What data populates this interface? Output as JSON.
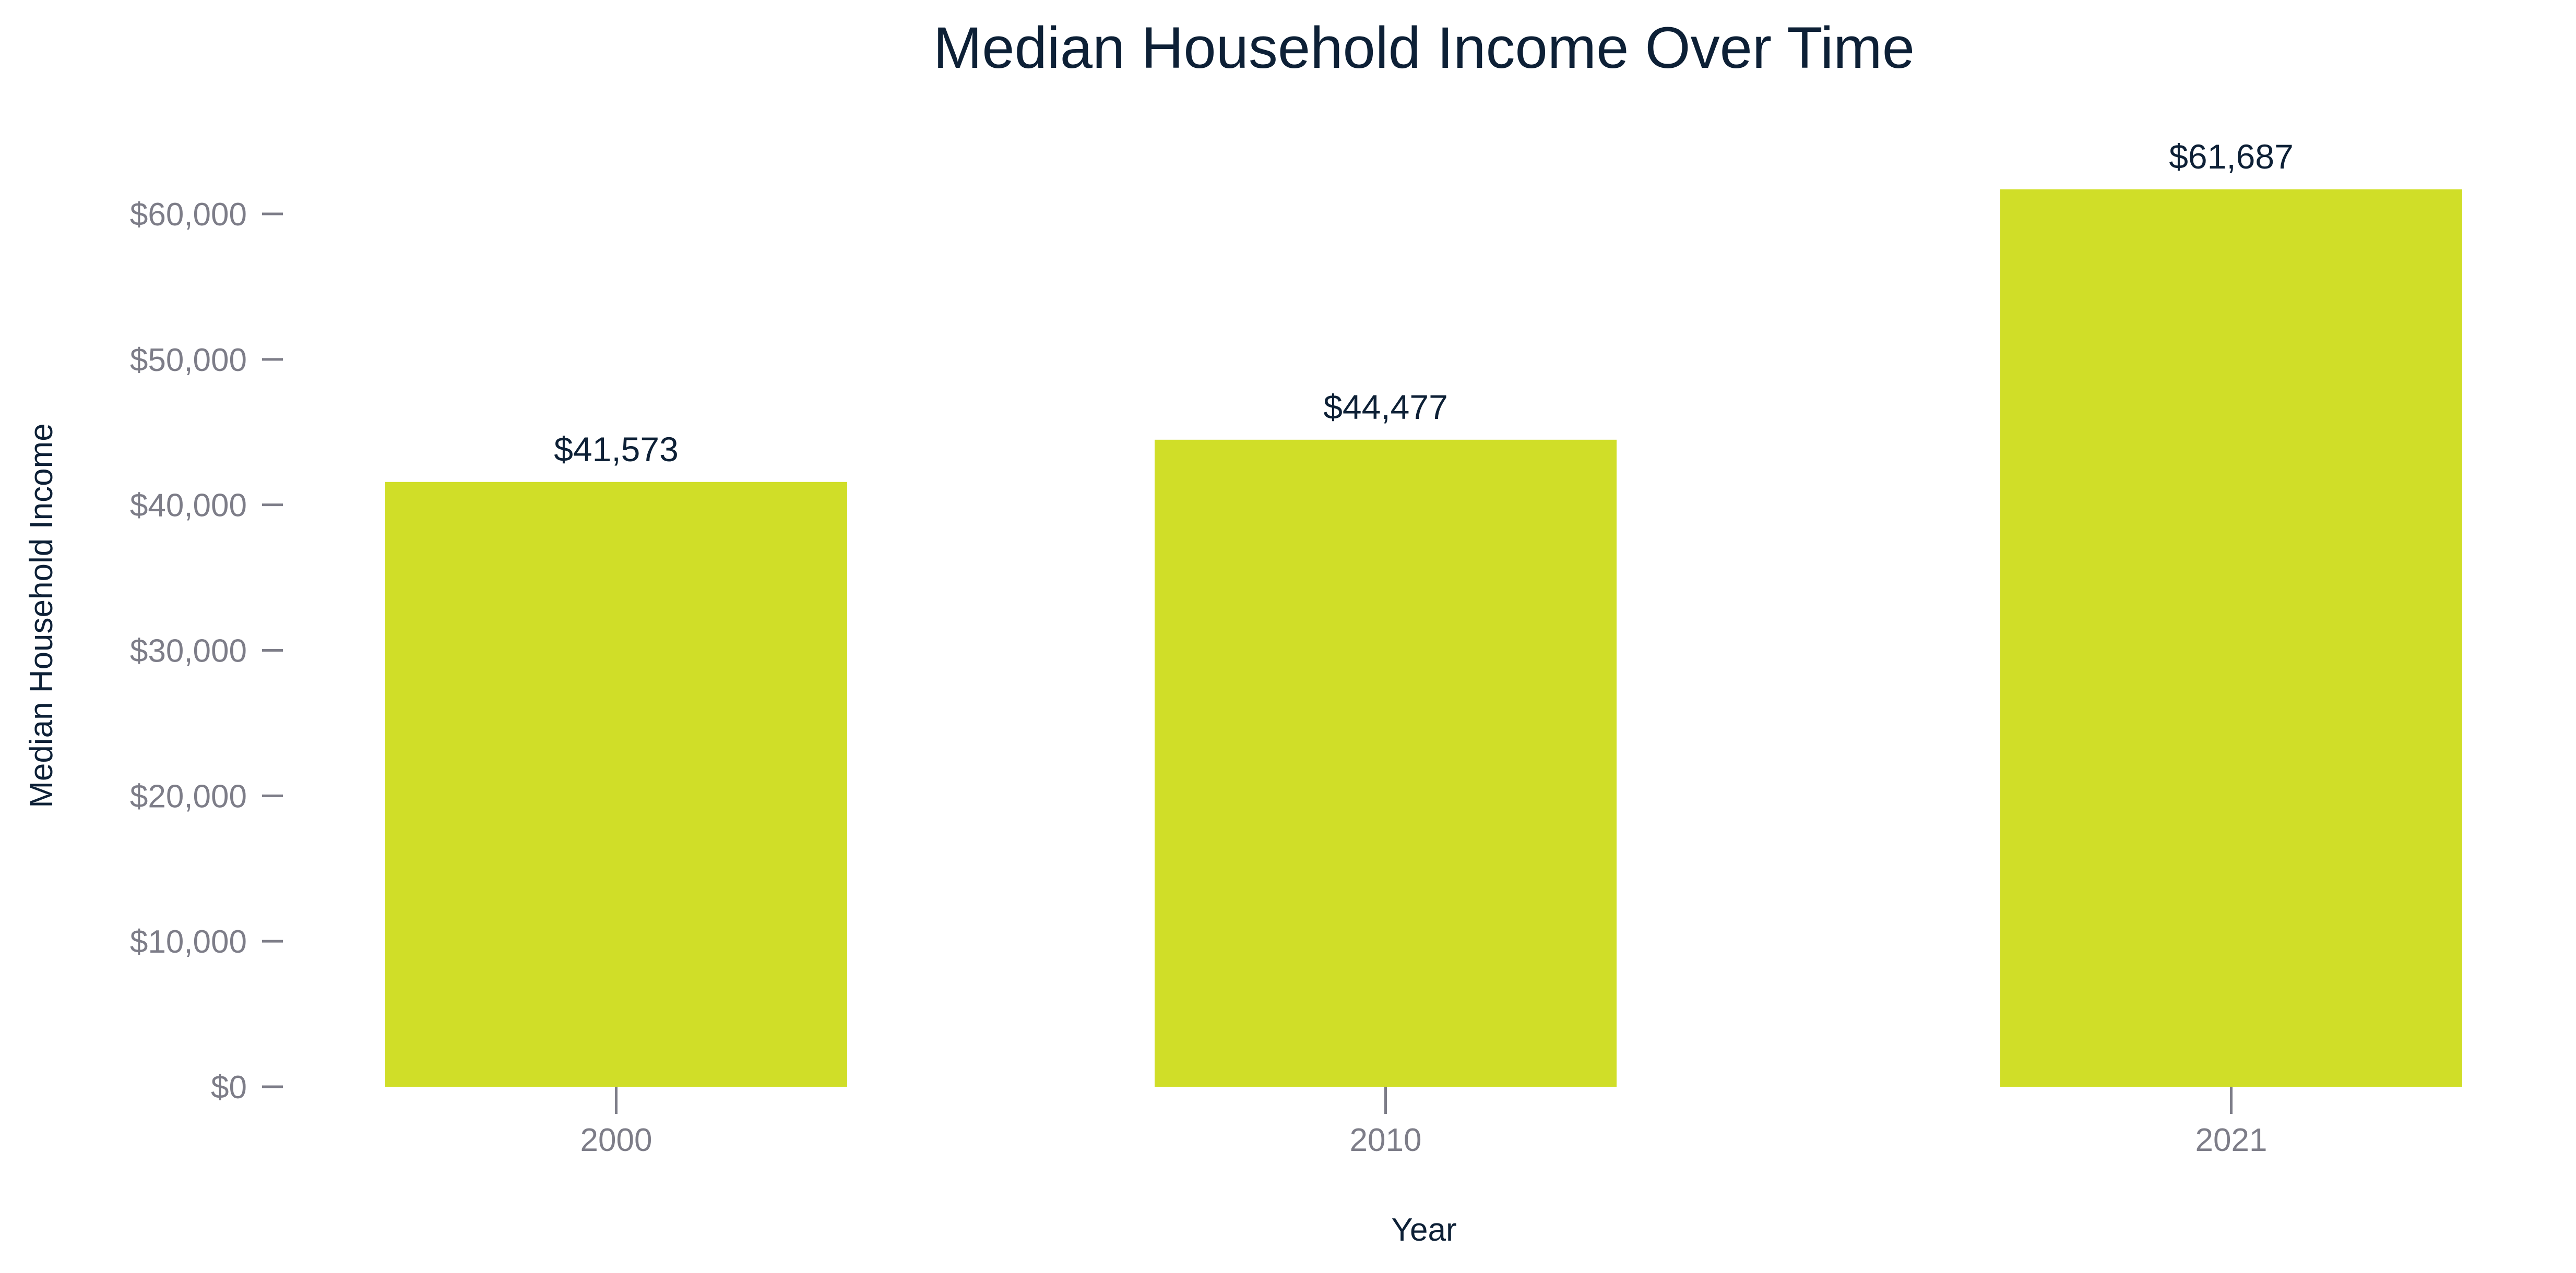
{
  "chart_data": {
    "type": "bar",
    "title": "Median Household Income Over Time",
    "xlabel": "Year",
    "ylabel": "Median Household Income",
    "categories": [
      "2000",
      "2010",
      "2021"
    ],
    "values": [
      41573,
      44477,
      61687
    ],
    "data_labels": [
      "$41,573",
      "$44,477",
      "$61,687"
    ],
    "ylim": [
      0,
      64000
    ],
    "yticks": [
      0,
      10000,
      20000,
      30000,
      40000,
      50000,
      60000
    ],
    "ytick_labels": [
      "$0",
      "$10,000",
      "$20,000",
      "$30,000",
      "$40,000",
      "$50,000",
      "$60,000"
    ],
    "grid": false,
    "legend": "none",
    "colors": {
      "bar": "#d0de28",
      "title": "#0d2036",
      "tick_label": "#7d7d88",
      "tick_mark": "#7d7d88",
      "axis_title": "#0d2036",
      "data_label": "#0d2036"
    }
  }
}
